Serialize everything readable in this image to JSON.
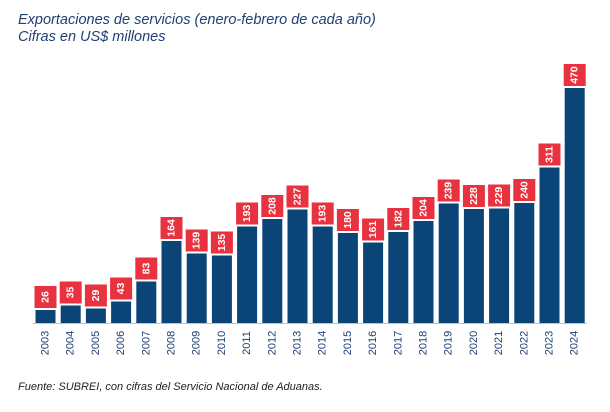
{
  "chart_data": {
    "type": "bar",
    "title": "Exportaciones de servicios (enero-febrero de cada año)",
    "subtitle": "Cifras en US$ millones",
    "categories": [
      "2003",
      "2004",
      "2005",
      "2006",
      "2007",
      "2008",
      "2009",
      "2010",
      "2011",
      "2012",
      "2013",
      "2014",
      "2015",
      "2016",
      "2017",
      "2018",
      "2019",
      "2020",
      "2021",
      "2022",
      "2023",
      "2024"
    ],
    "values": [
      26,
      35,
      29,
      43,
      83,
      164,
      139,
      135,
      193,
      208,
      227,
      193,
      180,
      161,
      182,
      204,
      239,
      228,
      229,
      240,
      311,
      470
    ],
    "xlabel": "",
    "ylabel": "",
    "ylim": [
      0,
      500
    ],
    "grid": false,
    "legend": "none",
    "bar_color": "#0b4577",
    "label_color": "#e8323f",
    "label_text_color": "#ffffff",
    "axis_color": "#b9c4d3"
  },
  "source": "Fuente: SUBREI, con cifras del Servicio Nacional de Aduanas."
}
